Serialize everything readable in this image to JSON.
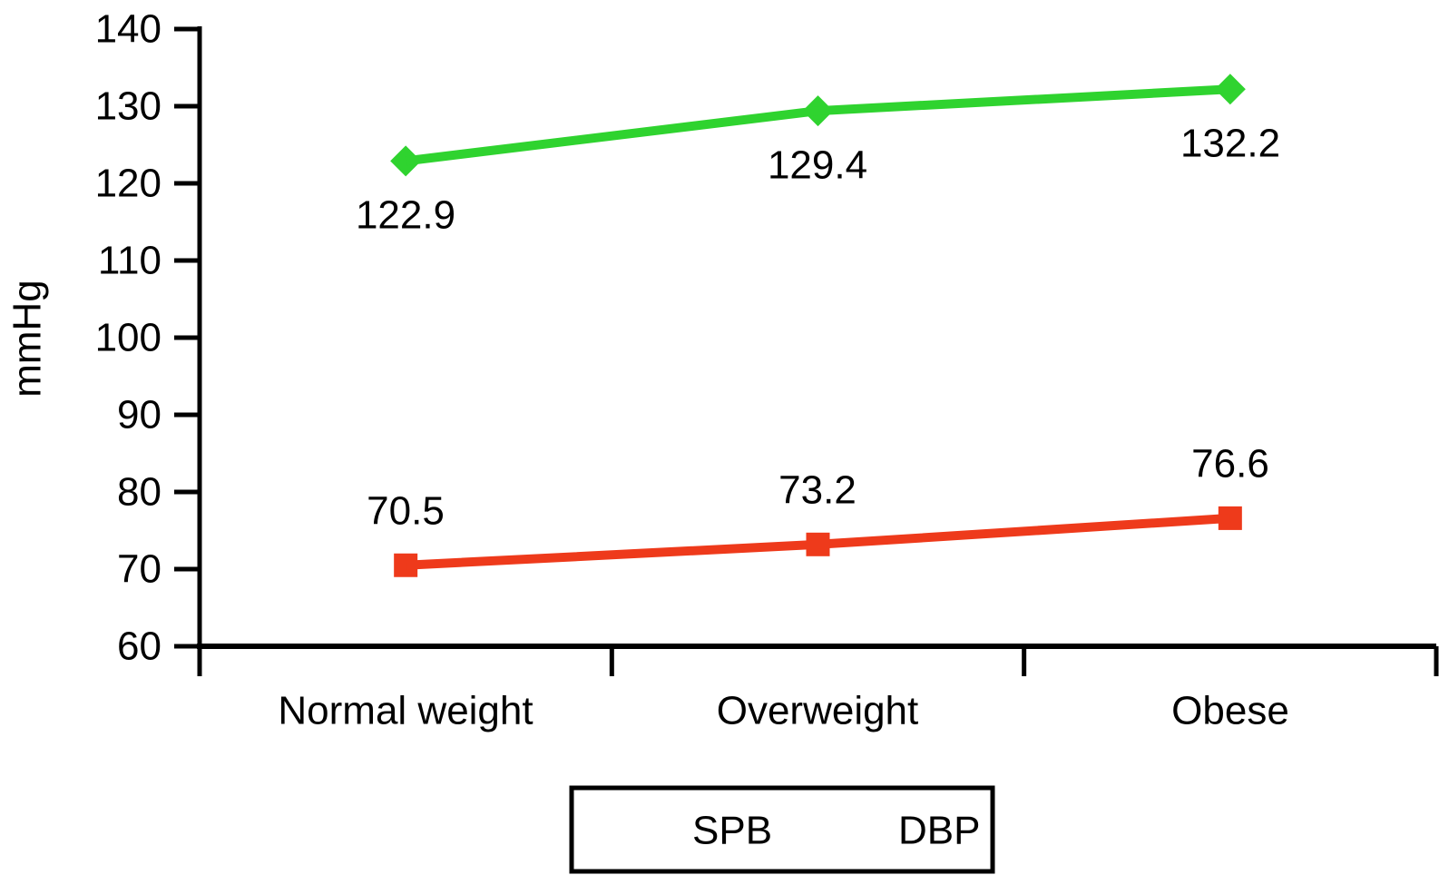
{
  "figure": {
    "background": "#ffffff",
    "axis_color": "#000000",
    "text_color": "#000000"
  },
  "chart_data": {
    "type": "line",
    "title": "",
    "xlabel": "",
    "ylabel": "mmHg",
    "categories": [
      "Normal weight",
      "Overweight",
      "Obese"
    ],
    "series": [
      {
        "name": "SPB",
        "values": [
          122.9,
          129.4,
          132.2
        ],
        "labels": [
          "122.9",
          "129.4",
          "132.2"
        ],
        "color": "#2fd32f",
        "marker": "diamond",
        "label_placement": "below"
      },
      {
        "name": "DBP",
        "values": [
          70.5,
          73.2,
          76.6
        ],
        "labels": [
          "70.5",
          "73.2",
          "76.6"
        ],
        "color": "#ee3a1b",
        "marker": "square",
        "label_placement": "above"
      }
    ],
    "ylim": [
      60,
      140
    ],
    "yticks": [
      60,
      70,
      80,
      90,
      100,
      110,
      120,
      130,
      140
    ],
    "grid": false,
    "legend": {
      "position": "bottom",
      "entries": [
        "SPB",
        "DBP"
      ]
    }
  }
}
